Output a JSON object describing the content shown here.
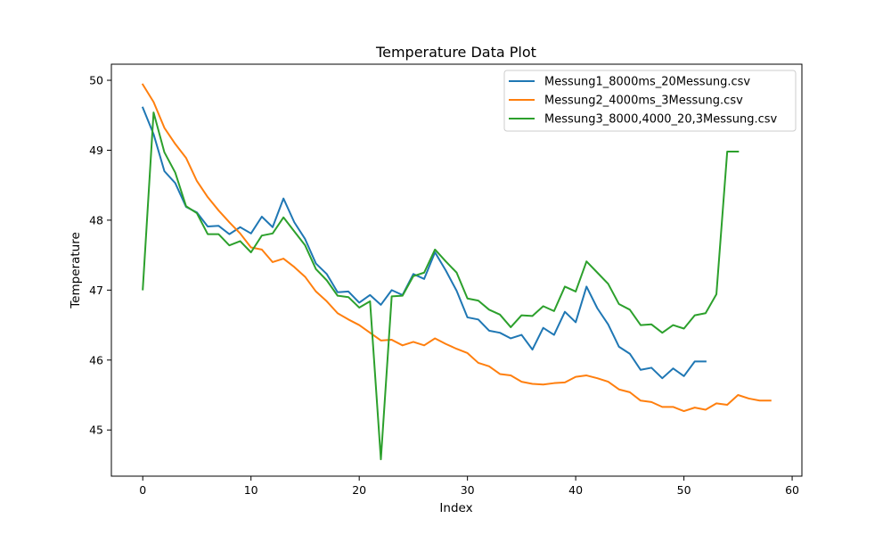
{
  "chart_data": {
    "type": "line",
    "title": "Temperature Data Plot",
    "xlabel": "Index",
    "ylabel": "Temperature",
    "xlim": [
      -2.9,
      60.9
    ],
    "ylim": [
      44.34,
      50.23
    ],
    "xticks": [
      0,
      10,
      20,
      30,
      40,
      50,
      60
    ],
    "yticks": [
      45,
      46,
      47,
      48,
      49,
      50
    ],
    "grid": false,
    "legend_position": "top-right",
    "series": [
      {
        "name": "Messung1_8000ms_20Messung.csv",
        "color": "#1f77b4",
        "values": [
          49.61,
          49.23,
          48.7,
          48.53,
          48.19,
          48.11,
          47.91,
          47.92,
          47.8,
          47.9,
          47.81,
          48.05,
          47.9,
          48.31,
          47.97,
          47.73,
          47.38,
          47.23,
          46.97,
          46.98,
          46.82,
          46.93,
          46.79,
          47.0,
          46.93,
          47.23,
          47.16,
          47.54,
          47.28,
          46.99,
          46.61,
          46.58,
          46.42,
          46.39,
          46.31,
          46.36,
          46.15,
          46.46,
          46.36,
          46.69,
          46.54,
          47.05,
          46.74,
          46.51,
          46.19,
          46.09,
          45.86,
          45.89,
          45.74,
          45.88,
          45.77,
          45.98,
          45.98
        ]
      },
      {
        "name": "Messung2_4000ms_3Messung.csv",
        "color": "#ff7f0e",
        "values": [
          49.94,
          49.69,
          49.32,
          49.09,
          48.89,
          48.56,
          48.33,
          48.14,
          47.97,
          47.81,
          47.61,
          47.58,
          47.4,
          47.45,
          47.33,
          47.19,
          46.98,
          46.84,
          46.67,
          46.58,
          46.5,
          46.39,
          46.28,
          46.29,
          46.21,
          46.26,
          46.21,
          46.31,
          46.23,
          46.16,
          46.1,
          45.96,
          45.91,
          45.8,
          45.78,
          45.69,
          45.66,
          45.65,
          45.67,
          45.68,
          45.76,
          45.78,
          45.74,
          45.69,
          45.58,
          45.54,
          45.42,
          45.4,
          45.33,
          45.33,
          45.27,
          45.32,
          45.29,
          45.38,
          45.36,
          45.5,
          45.45,
          45.42,
          45.42
        ]
      },
      {
        "name": "Messung3_8000,4000_20,3Messung.csv",
        "color": "#2ca02c",
        "values": [
          47.01,
          49.54,
          48.97,
          48.68,
          48.2,
          48.1,
          47.8,
          47.8,
          47.64,
          47.7,
          47.54,
          47.78,
          47.81,
          48.04,
          47.84,
          47.64,
          47.3,
          47.14,
          46.92,
          46.9,
          46.75,
          46.84,
          44.58,
          46.91,
          46.92,
          47.2,
          47.25,
          47.58,
          47.41,
          47.25,
          46.88,
          46.85,
          46.72,
          46.65,
          46.47,
          46.64,
          46.63,
          46.77,
          46.7,
          47.05,
          46.98,
          47.41,
          47.25,
          47.09,
          46.8,
          46.72,
          46.5,
          46.51,
          46.39,
          46.5,
          46.45,
          46.64,
          46.67,
          46.94,
          48.98,
          48.98
        ]
      }
    ]
  }
}
